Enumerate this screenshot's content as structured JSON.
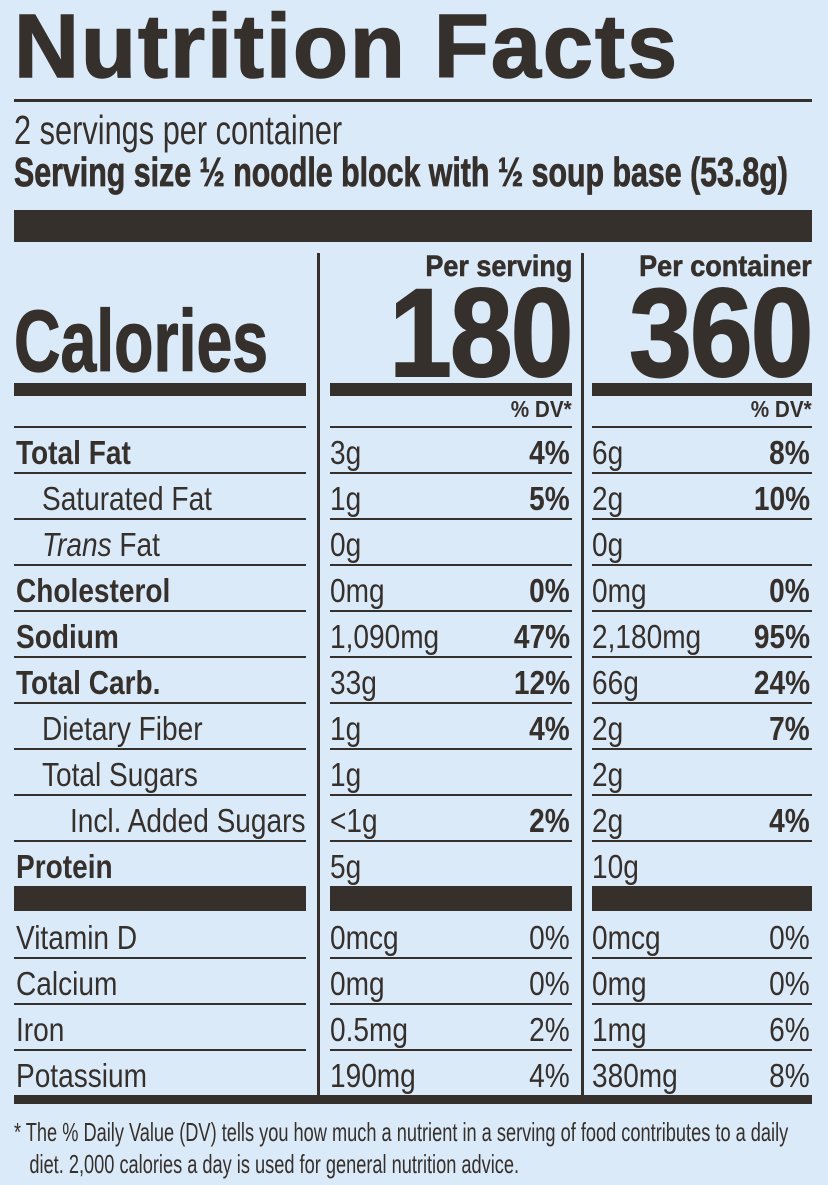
{
  "colors": {
    "background": "#dbeaf8",
    "ink": "#36302c"
  },
  "header": {
    "title": "Nutrition Facts",
    "servings_per_container": "2 servings per container",
    "serving_size": "Serving size ½ noodle block with ½ soup base (53.8g)"
  },
  "table": {
    "column_headers": {
      "per_serving": "Per serving",
      "per_container": "Per container"
    },
    "calories": {
      "label": "Calories",
      "per_serving": "180",
      "per_container": "360"
    },
    "dv_header": "% DV*",
    "rows": [
      {
        "label": "Total Fat",
        "style": "bold",
        "s_amt": "3g",
        "s_dv": "4%",
        "c_amt": "6g",
        "c_dv": "8%"
      },
      {
        "label": "Saturated Fat",
        "style": "indent",
        "s_amt": "1g",
        "s_dv": "5%",
        "c_amt": "2g",
        "c_dv": "10%"
      },
      {
        "label": "Fat",
        "italic_prefix": "Trans",
        "style": "indent",
        "s_amt": "0g",
        "s_dv": "",
        "c_amt": "0g",
        "c_dv": ""
      },
      {
        "label": "Cholesterol",
        "style": "bold",
        "s_amt": "0mg",
        "s_dv": "0%",
        "c_amt": "0mg",
        "c_dv": "0%"
      },
      {
        "label": "Sodium",
        "style": "bold",
        "s_amt": "1,090mg",
        "s_dv": "47%",
        "c_amt": "2,180mg",
        "c_dv": "95%"
      },
      {
        "label": "Total Carb.",
        "style": "bold",
        "s_amt": "33g",
        "s_dv": "12%",
        "c_amt": "66g",
        "c_dv": "24%"
      },
      {
        "label": "Dietary Fiber",
        "style": "indent",
        "s_amt": "1g",
        "s_dv": "4%",
        "c_amt": "2g",
        "c_dv": "7%"
      },
      {
        "label": "Total Sugars",
        "style": "indent",
        "s_amt": "1g",
        "s_dv": "",
        "c_amt": "2g",
        "c_dv": ""
      },
      {
        "label": "Incl. Added Sugars",
        "style": "indent2",
        "s_amt": "<1g",
        "s_dv": "2%",
        "c_amt": "2g",
        "c_dv": "4%"
      },
      {
        "label": "Protein",
        "style": "bold",
        "s_amt": "5g",
        "s_dv": "",
        "c_amt": "10g",
        "c_dv": ""
      },
      {
        "divider_bar": true
      },
      {
        "label": "Vitamin D",
        "style": "plain",
        "dv_regular": true,
        "s_amt": "0mcg",
        "s_dv": "0%",
        "c_amt": "0mcg",
        "c_dv": "0%"
      },
      {
        "label": "Calcium",
        "style": "plain",
        "dv_regular": true,
        "s_amt": "0mg",
        "s_dv": "0%",
        "c_amt": "0mg",
        "c_dv": "0%"
      },
      {
        "label": "Iron",
        "style": "plain",
        "dv_regular": true,
        "s_amt": "0.5mg",
        "s_dv": "2%",
        "c_amt": "1mg",
        "c_dv": "6%"
      },
      {
        "label": "Potassium",
        "style": "plain",
        "dv_regular": true,
        "s_amt": "190mg",
        "s_dv": "4%",
        "c_amt": "380mg",
        "c_dv": "8%"
      }
    ]
  },
  "footnote": "* The % Daily Value (DV) tells you how much a nutrient in a serving of food contributes to a daily diet. 2,000 calories a day is used for general nutrition advice."
}
